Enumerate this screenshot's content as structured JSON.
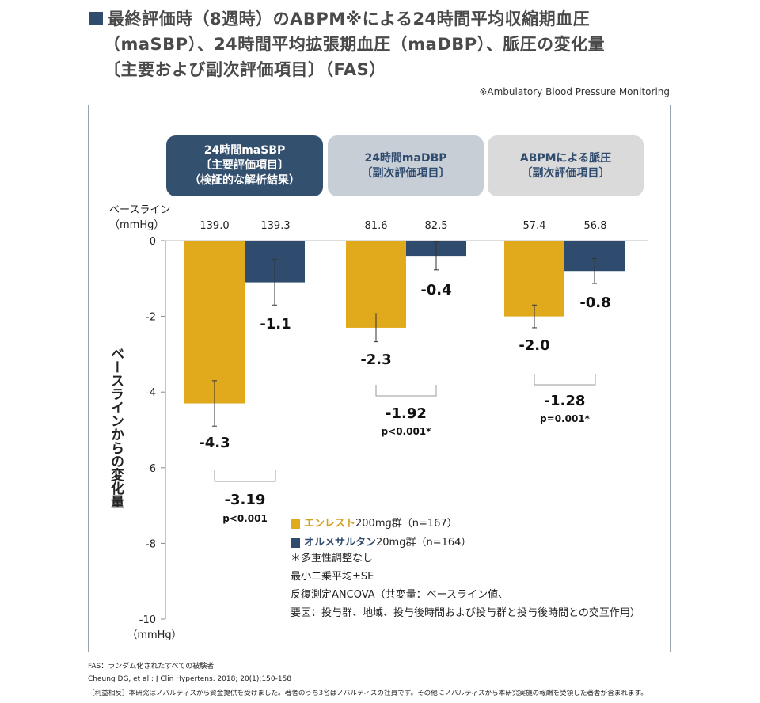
{
  "title": {
    "line1": "最終評価時（8週時）のABPM※による24時間平均収縮期血圧",
    "line2": "（maSBP）、24時間平均拡張期血圧（maDBP）、脈圧の変化量",
    "line3": "〔主要および副次評価項目〕（FAS）"
  },
  "note_top": "※Ambulatory Blood Pressure Monitoring",
  "headers": [
    {
      "l1": "24時間maSBP",
      "l2": "〔主要評価項目〕",
      "l3": "（検証的な解析結果）"
    },
    {
      "l1": "24時間maDBP",
      "l2": "〔副次評価項目〕",
      "l3": ""
    },
    {
      "l1": "ABPMによる脈圧",
      "l2": "〔副次評価項目〕",
      "l3": ""
    }
  ],
  "baseline_label": {
    "l1": "ベースライン",
    "l2": "（mmHg）"
  },
  "baseline_values": [
    "139.0",
    "139.3",
    "81.6",
    "82.5",
    "57.4",
    "56.8"
  ],
  "legend": {
    "a_name": "エンレスト",
    "a_rest": "200mg群（n=167）",
    "b_name": "オルメサルタン",
    "b_rest": "20mg群（n=164）"
  },
  "notes": {
    "n1": "＊多重性調整なし",
    "n2": "最小二乗平均±SE",
    "n3": "反復測定ANCOVA（共変量：ベースライン値、",
    "n4": "要因：投与群、地域、投与後時間および投与群と投与後時間との交互作用）"
  },
  "footer": {
    "f1": "FAS：ランダム化されたすべての被験者",
    "f2": "Cheung DG, et al.: J Clin Hypertens. 2018; 20(1):150-158",
    "f3": "［利益相反］本研究はノバルティスから資金提供を受けました。著者のうち3名はノバルティスの社員です。その他にノバルティスから本研究実施の報酬を受領した著者が含まれます。"
  },
  "colors": {
    "entresto": "#e0aa1c",
    "olmesartan": "#2f4b6e"
  },
  "chart_data": {
    "type": "bar",
    "ylabel": "ベースラインからの変化量",
    "yunit": "（mmHg）",
    "ylim": [
      -10,
      0
    ],
    "yticks": [
      0,
      -2,
      -4,
      -6,
      -8,
      -10
    ],
    "categories": [
      "24時間maSBP",
      "24時間maDBP",
      "ABPMによる脈圧"
    ],
    "series": [
      {
        "name": "エンレスト200mg群（n=167）",
        "values": [
          -4.3,
          -2.3,
          -2.0
        ],
        "se": [
          0.6,
          0.37,
          0.3
        ],
        "labels": [
          "-4.3",
          "-2.3",
          "-2.0"
        ]
      },
      {
        "name": "オルメサルタン20mg群（n=164）",
        "values": [
          -1.1,
          -0.4,
          -0.8
        ],
        "se": [
          0.6,
          0.37,
          0.33
        ],
        "labels": [
          "-1.1",
          "-0.4",
          "-0.8"
        ]
      }
    ],
    "differences": [
      {
        "value": "-3.19",
        "p": "p<0.001"
      },
      {
        "value": "-1.92",
        "p": "p<0.001*"
      },
      {
        "value": "-1.28",
        "p": "p=0.001*"
      }
    ]
  }
}
